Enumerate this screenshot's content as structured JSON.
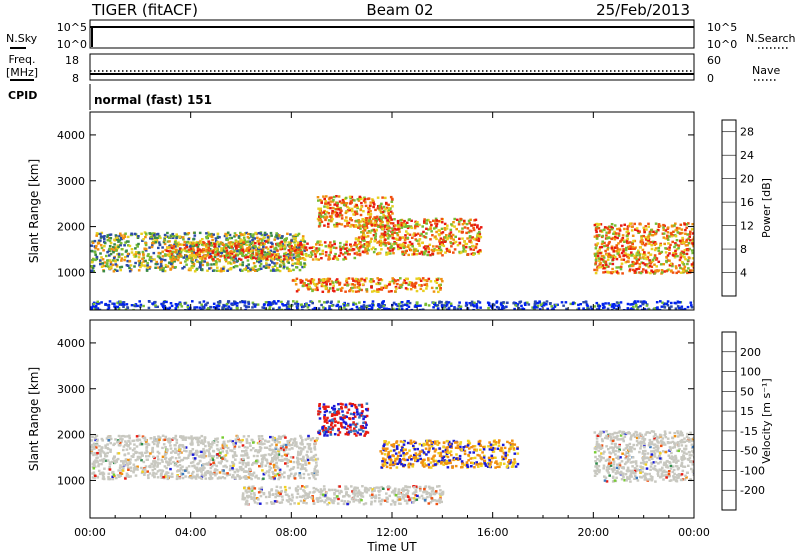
{
  "header": {
    "station": "TIGER (fitACF)",
    "beam": "Beam 02",
    "date": "25/Feb/2013"
  },
  "status_panels": {
    "nsky_label": "N.Sky",
    "nsky_ticks": [
      "10^5",
      "10^0"
    ],
    "nsearch_label": "N.Search",
    "nsearch_ticks": [
      "10^5",
      "10^0"
    ],
    "freq_label_1": "Freq.",
    "freq_label_2": "[MHz]",
    "freq_ticks": [
      "18",
      "8"
    ],
    "nave_label": "Nave",
    "nave_ticks": [
      "60",
      "0"
    ],
    "cpid_label": "CPID",
    "cpid_value": "normal (fast) 151"
  },
  "chart_data": [
    {
      "type": "heatmap",
      "quantity": "Power",
      "xlabel": "",
      "ylabel": "Slant Range [km]",
      "xlim": [
        0,
        24
      ],
      "ylim": [
        180,
        4500
      ],
      "x_ticks": [
        "00:00",
        "04:00",
        "08:00",
        "12:00",
        "16:00",
        "20:00",
        "00:00"
      ],
      "y_ticks": [
        1000,
        2000,
        3000,
        4000
      ],
      "colorbar": {
        "label": "Power [dB]",
        "ticks": [
          4,
          8,
          12,
          16,
          20,
          24,
          28
        ],
        "range": [
          0,
          30
        ],
        "colors": [
          "#0022ee",
          "#2b4aa8",
          "#3a8a44",
          "#77bb33",
          "#e8d020",
          "#f09010",
          "#f05010",
          "#e81a10"
        ]
      },
      "regions": [
        {
          "t0": 0.0,
          "t1": 8.5,
          "r0": 1050,
          "r1": 1900,
          "level": "mid"
        },
        {
          "t0": 3.0,
          "t1": 10.5,
          "r0": 1300,
          "r1": 1700,
          "level": "high"
        },
        {
          "t0": 9.0,
          "t1": 12.0,
          "r0": 2000,
          "r1": 2700,
          "level": "high"
        },
        {
          "t0": 10.5,
          "t1": 15.5,
          "r0": 1400,
          "r1": 2200,
          "level": "high"
        },
        {
          "t0": 8.0,
          "t1": 14.0,
          "r0": 600,
          "r1": 900,
          "level": "high"
        },
        {
          "t0": 20.0,
          "t1": 24.0,
          "r0": 1000,
          "r1": 2100,
          "level": "high"
        },
        {
          "t0": 0.0,
          "t1": 24.0,
          "r0": 200,
          "r1": 400,
          "level": "low"
        }
      ]
    },
    {
      "type": "heatmap",
      "quantity": "Velocity",
      "xlabel": "Time UT",
      "ylabel": "Slant Range [km]",
      "xlim": [
        0,
        24
      ],
      "ylim": [
        180,
        4500
      ],
      "x_ticks": [
        "00:00",
        "04:00",
        "08:00",
        "12:00",
        "16:00",
        "20:00",
        "00:00"
      ],
      "y_ticks": [
        1000,
        2000,
        3000,
        4000
      ],
      "colorbar": {
        "label": "Velocity [m s⁻¹]",
        "ticks": [
          200,
          100,
          50,
          15,
          -15,
          -50,
          -100,
          -200
        ],
        "colors": [
          "#1a1ad8",
          "#3a7abf",
          "#2e8c4a",
          "#77cc33",
          "#c8c8c0",
          "#f0d020",
          "#f09010",
          "#f05010",
          "#e81a10"
        ]
      },
      "regions": [
        {
          "t0": 0.0,
          "t1": 9.0,
          "r0": 1050,
          "r1": 2000,
          "level": "ground"
        },
        {
          "t0": 9.0,
          "t1": 11.0,
          "r0": 2000,
          "r1": 2700,
          "level": "red-blue"
        },
        {
          "t0": 11.5,
          "t1": 17.0,
          "r0": 1300,
          "r1": 1900,
          "level": "orange-blue"
        },
        {
          "t0": 6.0,
          "t1": 14.0,
          "r0": 500,
          "r1": 900,
          "level": "ground"
        },
        {
          "t0": 20.0,
          "t1": 24.0,
          "r0": 1000,
          "r1": 2100,
          "level": "ground"
        }
      ]
    }
  ]
}
